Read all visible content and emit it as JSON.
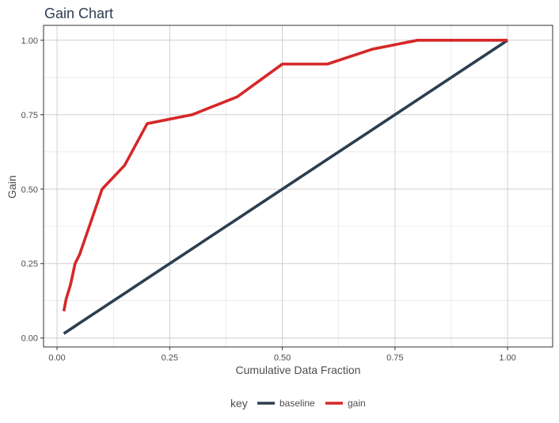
{
  "chart_data": {
    "type": "line",
    "title": "Gain Chart",
    "xlabel": "Cumulative Data Fraction",
    "ylabel": "Gain",
    "xlim": [
      -0.03,
      1.1
    ],
    "ylim": [
      -0.03,
      1.05
    ],
    "xticks": [
      0,
      0.25,
      0.5,
      0.75,
      1.0
    ],
    "xtick_labels": [
      "0.00",
      "0.25",
      "0.50",
      "0.75",
      "1.00"
    ],
    "yticks": [
      0,
      0.25,
      0.5,
      0.75,
      1.0
    ],
    "ytick_labels": [
      "0.00",
      "0.25",
      "0.50",
      "0.75",
      "1.00"
    ],
    "grid": true,
    "legend": {
      "title": "key",
      "position": "bottom"
    },
    "series": [
      {
        "name": "baseline",
        "color": "#2c3e50",
        "x": [
          0.015,
          0.02,
          0.03,
          0.04,
          0.05,
          0.1,
          0.15,
          0.2,
          0.3,
          0.4,
          0.5,
          0.6,
          0.7,
          0.8,
          0.9,
          1.0
        ],
        "y": [
          0.015,
          0.02,
          0.03,
          0.04,
          0.05,
          0.1,
          0.15,
          0.2,
          0.3,
          0.4,
          0.5,
          0.6,
          0.7,
          0.8,
          0.9,
          1.0
        ]
      },
      {
        "name": "gain",
        "color": "#d62728",
        "x": [
          0.015,
          0.02,
          0.03,
          0.04,
          0.05,
          0.1,
          0.15,
          0.2,
          0.3,
          0.4,
          0.5,
          0.6,
          0.7,
          0.8,
          0.9,
          1.0
        ],
        "y": [
          0.09,
          0.13,
          0.18,
          0.25,
          0.28,
          0.5,
          0.58,
          0.72,
          0.75,
          0.81,
          0.92,
          0.92,
          0.97,
          1.0,
          1.0,
          1.0
        ]
      }
    ]
  }
}
